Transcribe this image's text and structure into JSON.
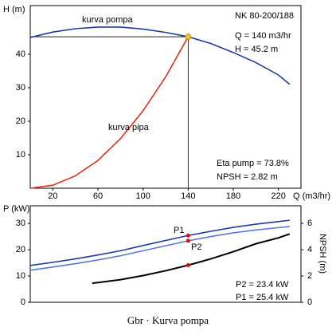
{
  "chart_data": [
    {
      "type": "line",
      "ylabel": "H (m)",
      "xlabel": "Q (m3/hr)",
      "xlim": [
        0,
        240
      ],
      "xticks": [
        20,
        60,
        100,
        140,
        180,
        220
      ],
      "ylim": [
        0,
        54.5
      ],
      "yticks": [
        10,
        20,
        30,
        40
      ],
      "series": [
        {
          "name": "kurva pompa",
          "color": "#1f3c98",
          "x": [
            0,
            20,
            40,
            60,
            80,
            100,
            120,
            140,
            160,
            180,
            200,
            220,
            230
          ],
          "values": [
            45,
            46.6,
            47.6,
            48.1,
            48.1,
            47.5,
            46.5,
            45.2,
            43.2,
            40.5,
            37.5,
            33.8,
            31
          ]
        },
        {
          "name": "kurva pipa",
          "color": "#e0301e",
          "x": [
            0,
            20,
            40,
            60,
            80,
            100,
            120,
            140
          ],
          "values": [
            0,
            0.9,
            3.7,
            8.3,
            14.8,
            23.1,
            33.2,
            45.2
          ]
        }
      ],
      "operating_point": {
        "x": 140,
        "y": 45.2,
        "color": "#f5c518"
      },
      "annotations": [
        "NK 80-200/188",
        "Q = 140 m3/hr",
        "H = 45.2 m",
        "Eta pump = 73.8%",
        "NPSH = 2.82 m"
      ]
    },
    {
      "type": "line",
      "ylabel": "P (kW)",
      "y2label": "NPSH (m)",
      "xlim": [
        0,
        240
      ],
      "ylim": [
        0,
        36.7
      ],
      "yticks": [
        0,
        10,
        20,
        30
      ],
      "y2lim": [
        0,
        7.34
      ],
      "y2ticks": [
        0,
        2,
        4,
        6
      ],
      "series": [
        {
          "name": "P1",
          "color": "#1f3c98",
          "x": [
            0,
            20,
            40,
            60,
            80,
            100,
            120,
            140,
            160,
            180,
            200,
            220,
            230
          ],
          "values": [
            14,
            15.2,
            16.5,
            18,
            19.6,
            21.6,
            23.5,
            25.4,
            27,
            28.5,
            29.7,
            30.7,
            31.2
          ]
        },
        {
          "name": "P2",
          "color": "#5a7bcc",
          "x": [
            0,
            20,
            40,
            60,
            80,
            100,
            120,
            140,
            160,
            180,
            200,
            220,
            230
          ],
          "values": [
            12.2,
            13.4,
            14.7,
            16.1,
            17.7,
            19.6,
            21.5,
            23.4,
            25,
            26.4,
            27.5,
            28.4,
            28.8
          ]
        },
        {
          "axis": "y2",
          "color": "#000000",
          "x": [
            55,
            60,
            80,
            100,
            120,
            140,
            160,
            180,
            200,
            220,
            230
          ],
          "values": [
            1.45,
            1.5,
            1.72,
            2.03,
            2.4,
            2.82,
            3.3,
            3.85,
            4.45,
            4.9,
            5.2
          ]
        }
      ],
      "markers": [
        {
          "x": 140,
          "y": 25.4,
          "axis": "y"
        },
        {
          "x": 140,
          "y": 23.4,
          "axis": "y"
        },
        {
          "x": 140,
          "y": 2.82,
          "axis": "y2"
        }
      ],
      "marker_color": "#d01010",
      "annotations": [
        "P2 = 23.4 kW",
        "P1 = 25.4 kW"
      ]
    }
  ],
  "caption": "Gbr · Kurva pompa"
}
